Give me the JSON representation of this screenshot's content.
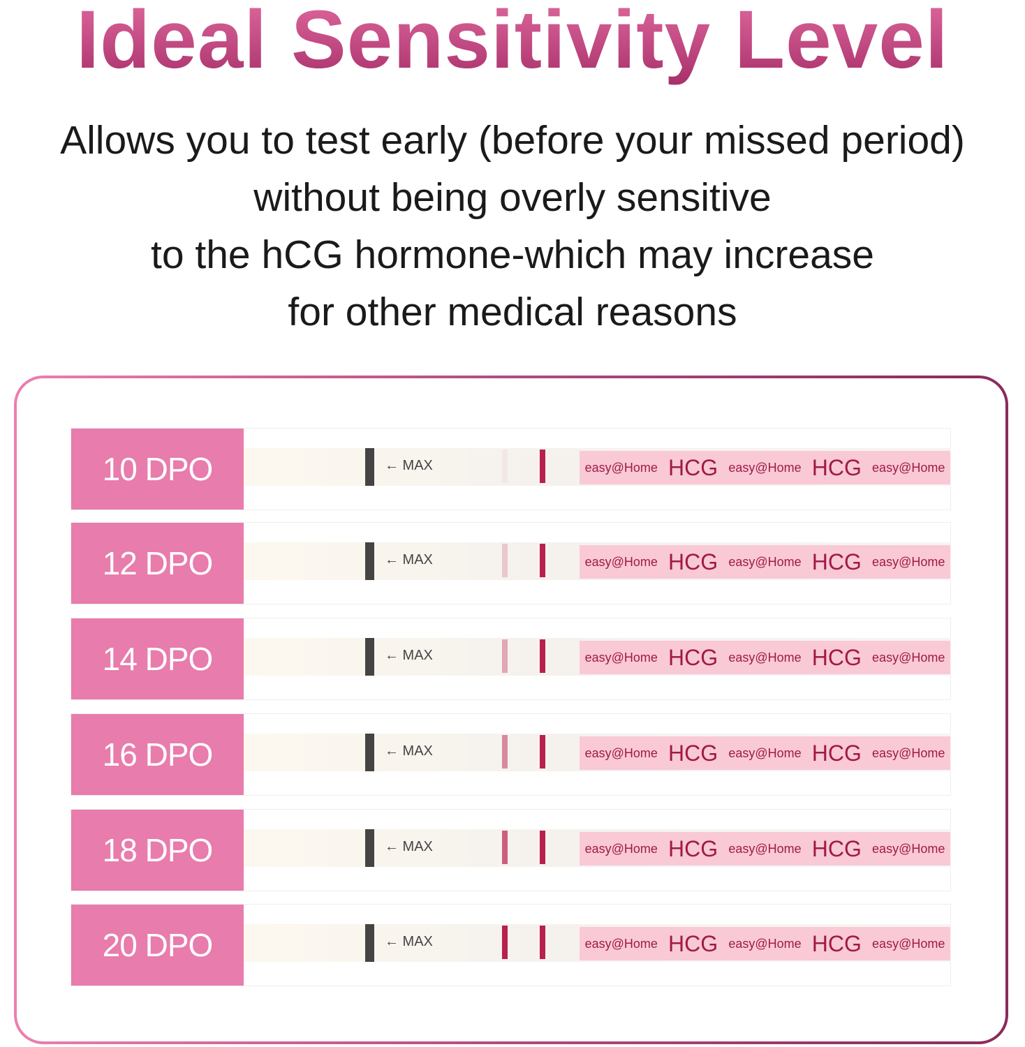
{
  "title": "Ideal Sensitivity Level",
  "subtitle_lines": [
    "Allows you to test early (before your missed period)",
    "without being overly sensitive",
    "to the hCG hormone-which may increase",
    "for other medical reasons"
  ],
  "strip": {
    "max_label": "← MAX",
    "brand": "easy@Home",
    "hcg": "HCG"
  },
  "rows": [
    {
      "label": "10 DPO",
      "test_line_intensity": 0.05
    },
    {
      "label": "12 DPO",
      "test_line_intensity": 0.2
    },
    {
      "label": "14 DPO",
      "test_line_intensity": 0.35
    },
    {
      "label": "16 DPO",
      "test_line_intensity": 0.5
    },
    {
      "label": "18 DPO",
      "test_line_intensity": 0.7
    },
    {
      "label": "20 DPO",
      "test_line_intensity": 1.0
    }
  ],
  "colors": {
    "line": "#b8204f",
    "label_bg": "#e87cac"
  }
}
